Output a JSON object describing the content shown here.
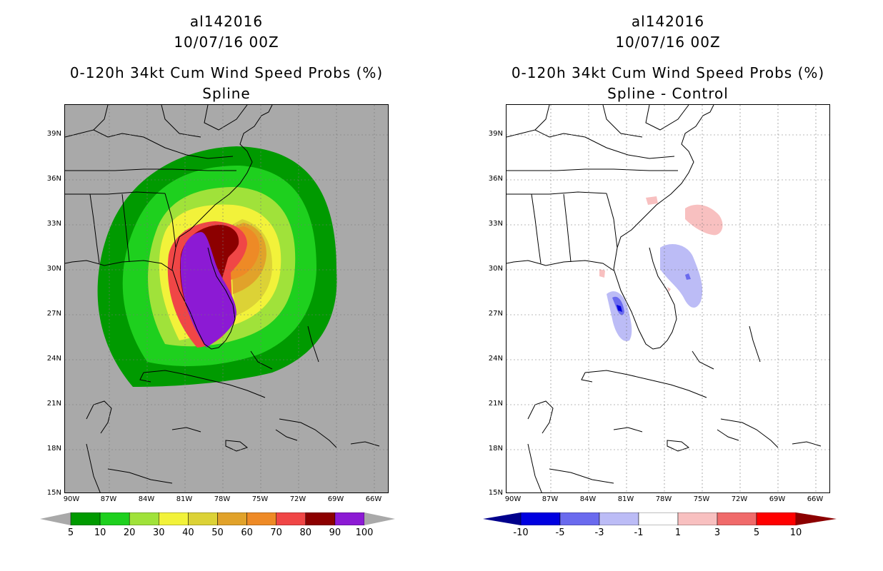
{
  "left_panel": {
    "storm_id": "al142016",
    "datetime": "10/07/16 00Z",
    "product": "0-120h 34kt Cum Wind Speed Probs (%)",
    "subtitle": "Spline",
    "colorbar": {
      "levels": [
        "5",
        "10",
        "20",
        "30",
        "40",
        "50",
        "60",
        "70",
        "80",
        "90",
        "100"
      ],
      "colors": [
        "#009a00",
        "#1ed01e",
        "#a0e23a",
        "#f2f23a",
        "#dcd236",
        "#e1a22a",
        "#ee8a26",
        "#f04646",
        "#8c0000",
        "#8c1ad4"
      ],
      "end_color": "#a9a9a9"
    }
  },
  "right_panel": {
    "storm_id": "al142016",
    "datetime": "10/07/16 00Z",
    "product": "0-120h 34kt Cum Wind Speed Probs (%)",
    "subtitle": "Spline - Control",
    "colorbar": {
      "levels": [
        "-10",
        "-5",
        "-3",
        "-1",
        "1",
        "3",
        "5",
        "10"
      ],
      "colors": [
        "#0000e0",
        "#6a6aee",
        "#bcbcf6",
        "#ffffff",
        "#f8c0c0",
        "#f06a6a",
        "#ff0000"
      ],
      "end_low": "#00008c",
      "end_high": "#8c0000"
    }
  },
  "axes": {
    "lat_labels": [
      "39N",
      "36N",
      "33N",
      "30N",
      "27N",
      "24N",
      "21N",
      "18N",
      "15N"
    ],
    "lon_labels": [
      "90W",
      "87W",
      "84W",
      "81W",
      "78W",
      "75W",
      "72W",
      "69W",
      "66W"
    ]
  }
}
